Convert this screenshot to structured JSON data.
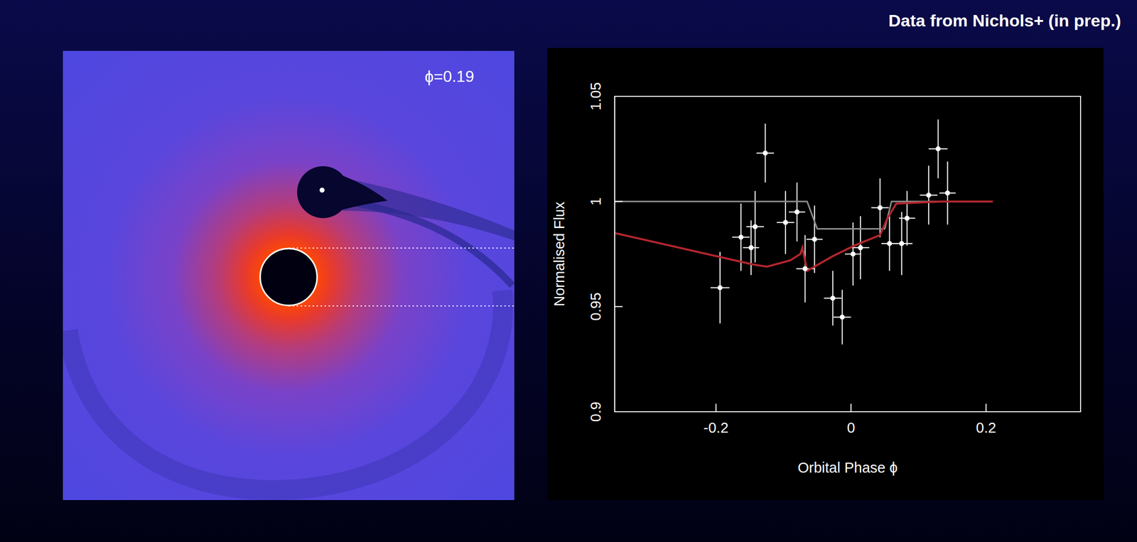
{
  "header": {
    "title": "Data from Nichols+ (in prep.)"
  },
  "simulation": {
    "label": "ϕ=0.19"
  },
  "chart_data": {
    "type": "scatter",
    "x_label": "Orbital Phase ϕ",
    "y_label": "Normalised Flux",
    "xlim": [
      -0.35,
      0.34
    ],
    "ylim": [
      0.9,
      1.05
    ],
    "xticks": [
      -0.2,
      0,
      0.2
    ],
    "yticks": [
      0.9,
      0.95,
      1,
      1.05
    ],
    "grid": false,
    "series": [
      {
        "type": "scatter",
        "color": "#ffffff",
        "x": [
          -0.194,
          -0.163,
          -0.148,
          -0.142,
          -0.127,
          -0.097,
          -0.08,
          -0.068,
          -0.054,
          -0.027,
          -0.013,
          0.003,
          0.014,
          0.043,
          0.057,
          0.075,
          0.083,
          0.115,
          0.129,
          0.143
        ],
        "values": [
          0.959,
          0.983,
          0.978,
          0.988,
          1.023,
          0.99,
          0.995,
          0.968,
          0.982,
          0.954,
          0.945,
          0.975,
          0.978,
          0.997,
          0.98,
          0.98,
          0.992,
          1.003,
          1.025,
          1.004
        ],
        "x_error": [
          0.014,
          0.013,
          0.012,
          0.013,
          0.013,
          0.013,
          0.012,
          0.013,
          0.012,
          0.013,
          0.013,
          0.012,
          0.013,
          0.013,
          0.012,
          0.016,
          0.012,
          0.013,
          0.014,
          0.012
        ],
        "y_error": [
          0.017,
          0.016,
          0.013,
          0.017,
          0.014,
          0.015,
          0.014,
          0.016,
          0.016,
          0.013,
          0.013,
          0.015,
          0.015,
          0.014,
          0.013,
          0.015,
          0.013,
          0.014,
          0.014,
          0.015
        ]
      },
      {
        "type": "line",
        "color": "#8c8c8c",
        "x": [
          -0.35,
          -0.065,
          -0.05,
          0.05,
          0.06,
          0.21
        ],
        "values": [
          1,
          1,
          0.987,
          0.987,
          1,
          1
        ]
      },
      {
        "type": "line",
        "color": "#b3262e",
        "x": [
          -0.35,
          -0.145,
          -0.124,
          -0.09,
          -0.075,
          -0.072,
          -0.065,
          -0.027,
          0.005,
          0.043,
          0.054,
          0.067,
          0.134,
          0.21
        ],
        "values": [
          0.985,
          0.97,
          0.969,
          0.972,
          0.975,
          0.978,
          0.967,
          0.974,
          0.979,
          0.984,
          0.992,
          0.999,
          1,
          1
        ]
      }
    ]
  }
}
